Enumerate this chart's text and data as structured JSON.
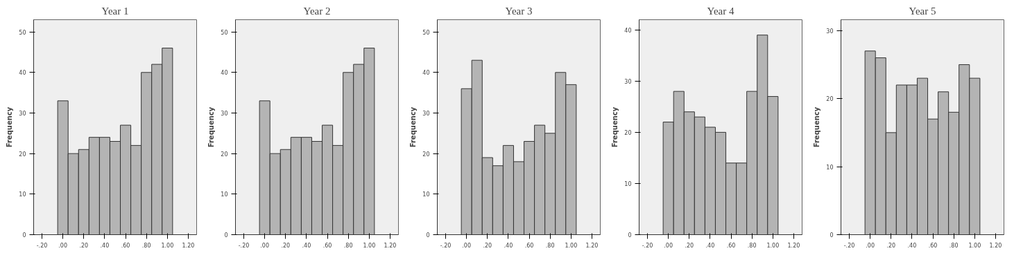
{
  "chart_data": [
    {
      "type": "histogram",
      "title": "Year 1",
      "ylabel": "Frequency",
      "color": "#b4b4b4",
      "bins": [
        -0.05,
        0.05,
        0.15,
        0.25,
        0.35,
        0.45,
        0.55,
        0.65,
        0.75,
        0.85,
        0.95,
        1.05
      ],
      "values": [
        33,
        20,
        21,
        24,
        24,
        23,
        27,
        22,
        40,
        42,
        46
      ],
      "xlim": [
        -0.28,
        1.28
      ],
      "xticks": [
        {
          "value": -0.2,
          "label": "-.20"
        },
        {
          "value": 0,
          "label": ".00"
        },
        {
          "value": 0.2,
          "label": ".20"
        },
        {
          "value": 0.4,
          "label": ".40"
        },
        {
          "value": 0.6,
          "label": ".60"
        },
        {
          "value": 0.8,
          "label": ".80"
        },
        {
          "value": 1.0,
          "label": "1.00"
        },
        {
          "value": 1.2,
          "label": "1.20"
        }
      ],
      "ylim": [
        0,
        53
      ],
      "yticks": [
        0,
        10,
        20,
        30,
        40,
        50
      ]
    },
    {
      "type": "histogram",
      "title": "Year 2",
      "ylabel": "Frequency",
      "color": "#b4b4b4",
      "bins": [
        -0.05,
        0.05,
        0.15,
        0.25,
        0.35,
        0.45,
        0.55,
        0.65,
        0.75,
        0.85,
        0.95,
        1.05
      ],
      "values": [
        33,
        20,
        21,
        24,
        24,
        23,
        27,
        22,
        40,
        42,
        46
      ],
      "xlim": [
        -0.28,
        1.28
      ],
      "xticks": [
        {
          "value": -0.2,
          "label": "-.20"
        },
        {
          "value": 0,
          "label": ".00"
        },
        {
          "value": 0.2,
          "label": ".20"
        },
        {
          "value": 0.4,
          "label": ".40"
        },
        {
          "value": 0.6,
          "label": ".60"
        },
        {
          "value": 0.8,
          "label": ".80"
        },
        {
          "value": 1.0,
          "label": "1.00"
        },
        {
          "value": 1.2,
          "label": "1.20"
        }
      ],
      "ylim": [
        0,
        53
      ],
      "yticks": [
        0,
        10,
        20,
        30,
        40,
        50
      ]
    },
    {
      "type": "histogram",
      "title": "Year 3",
      "ylabel": "Frequency",
      "color": "#b4b4b4",
      "bins": [
        -0.05,
        0.05,
        0.15,
        0.25,
        0.35,
        0.45,
        0.55,
        0.65,
        0.75,
        0.85,
        0.95,
        1.05
      ],
      "values": [
        36,
        43,
        19,
        17,
        22,
        18,
        23,
        27,
        25,
        40,
        37
      ],
      "xlim": [
        -0.28,
        1.28
      ],
      "xticks": [
        {
          "value": -0.2,
          "label": "-.20"
        },
        {
          "value": 0,
          "label": ".00"
        },
        {
          "value": 0.2,
          "label": ".20"
        },
        {
          "value": 0.4,
          "label": ".40"
        },
        {
          "value": 0.6,
          "label": ".60"
        },
        {
          "value": 0.8,
          "label": ".80"
        },
        {
          "value": 1.0,
          "label": "1.00"
        },
        {
          "value": 1.2,
          "label": "1.20"
        }
      ],
      "ylim": [
        0,
        53
      ],
      "yticks": [
        0,
        10,
        20,
        30,
        40,
        50
      ]
    },
    {
      "type": "histogram",
      "title": "Year 4",
      "ylabel": "Frequency",
      "color": "#b4b4b4",
      "bins": [
        -0.05,
        0.05,
        0.15,
        0.25,
        0.35,
        0.45,
        0.55,
        0.65,
        0.75,
        0.85,
        0.95,
        1.05
      ],
      "values": [
        22,
        28,
        24,
        23,
        21,
        20,
        14,
        14,
        28,
        39,
        27
      ],
      "xlim": [
        -0.28,
        1.28
      ],
      "xticks": [
        {
          "value": -0.2,
          "label": "-.20"
        },
        {
          "value": 0,
          "label": ".00"
        },
        {
          "value": 0.2,
          "label": ".20"
        },
        {
          "value": 0.4,
          "label": ".40"
        },
        {
          "value": 0.6,
          "label": ".60"
        },
        {
          "value": 0.8,
          "label": ".80"
        },
        {
          "value": 1.0,
          "label": "1.00"
        },
        {
          "value": 1.2,
          "label": "1.20"
        }
      ],
      "ylim": [
        0,
        42
      ],
      "yticks": [
        0,
        10,
        20,
        30,
        40
      ]
    },
    {
      "type": "histogram",
      "title": "Year 5",
      "ylabel": "Frequency",
      "color": "#b4b4b4",
      "bins": [
        -0.05,
        0.05,
        0.15,
        0.25,
        0.35,
        0.45,
        0.55,
        0.65,
        0.75,
        0.85,
        0.95,
        1.05
      ],
      "values": [
        27,
        26,
        15,
        22,
        22,
        23,
        17,
        21,
        18,
        25,
        23
      ],
      "xlim": [
        -0.28,
        1.28
      ],
      "xticks": [
        {
          "value": -0.2,
          "label": "-.20"
        },
        {
          "value": 0,
          "label": ".00"
        },
        {
          "value": 0.2,
          "label": ".20"
        },
        {
          "value": 0.4,
          "label": ".40"
        },
        {
          "value": 0.6,
          "label": ".60"
        },
        {
          "value": 0.8,
          "label": ".80"
        },
        {
          "value": 1.0,
          "label": "1.00"
        },
        {
          "value": 1.2,
          "label": "1.20"
        }
      ],
      "ylim": [
        0,
        31.6
      ],
      "yticks": [
        0,
        10,
        20,
        30
      ]
    }
  ]
}
